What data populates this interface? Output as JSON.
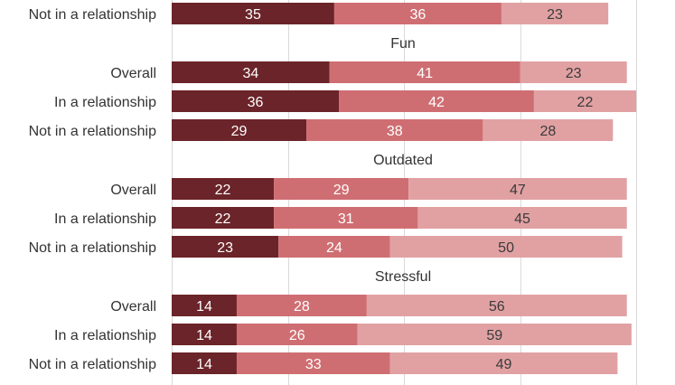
{
  "chart_data": {
    "type": "bar",
    "orientation": "horizontal",
    "stacked": true,
    "xlim": [
      0,
      100
    ],
    "grid": true,
    "series_colors": [
      "#6b2429",
      "#cf6e72",
      "#e1a1a3"
    ],
    "label_colors": [
      "#ffffff",
      "#ffffff",
      "#3a3a3a"
    ],
    "groups": [
      {
        "title": "",
        "rows": [
          {
            "label": "Not in a relationship",
            "values": [
              35,
              36,
              23
            ]
          }
        ]
      },
      {
        "title": "Fun",
        "rows": [
          {
            "label": "Overall",
            "values": [
              34,
              41,
              23
            ]
          },
          {
            "label": "In a relationship",
            "values": [
              36,
              42,
              22
            ]
          },
          {
            "label": "Not in a relationship",
            "values": [
              29,
              38,
              28
            ]
          }
        ]
      },
      {
        "title": "Outdated",
        "rows": [
          {
            "label": "Overall",
            "values": [
              22,
              29,
              47
            ]
          },
          {
            "label": "In a relationship",
            "values": [
              22,
              31,
              45
            ]
          },
          {
            "label": "Not in a relationship",
            "values": [
              23,
              24,
              50
            ]
          }
        ]
      },
      {
        "title": "Stressful",
        "rows": [
          {
            "label": "Overall",
            "values": [
              14,
              28,
              56
            ]
          },
          {
            "label": "In a relationship",
            "values": [
              14,
              26,
              59
            ]
          },
          {
            "label": "Not in a relationship",
            "values": [
              14,
              33,
              49
            ]
          }
        ]
      }
    ]
  }
}
